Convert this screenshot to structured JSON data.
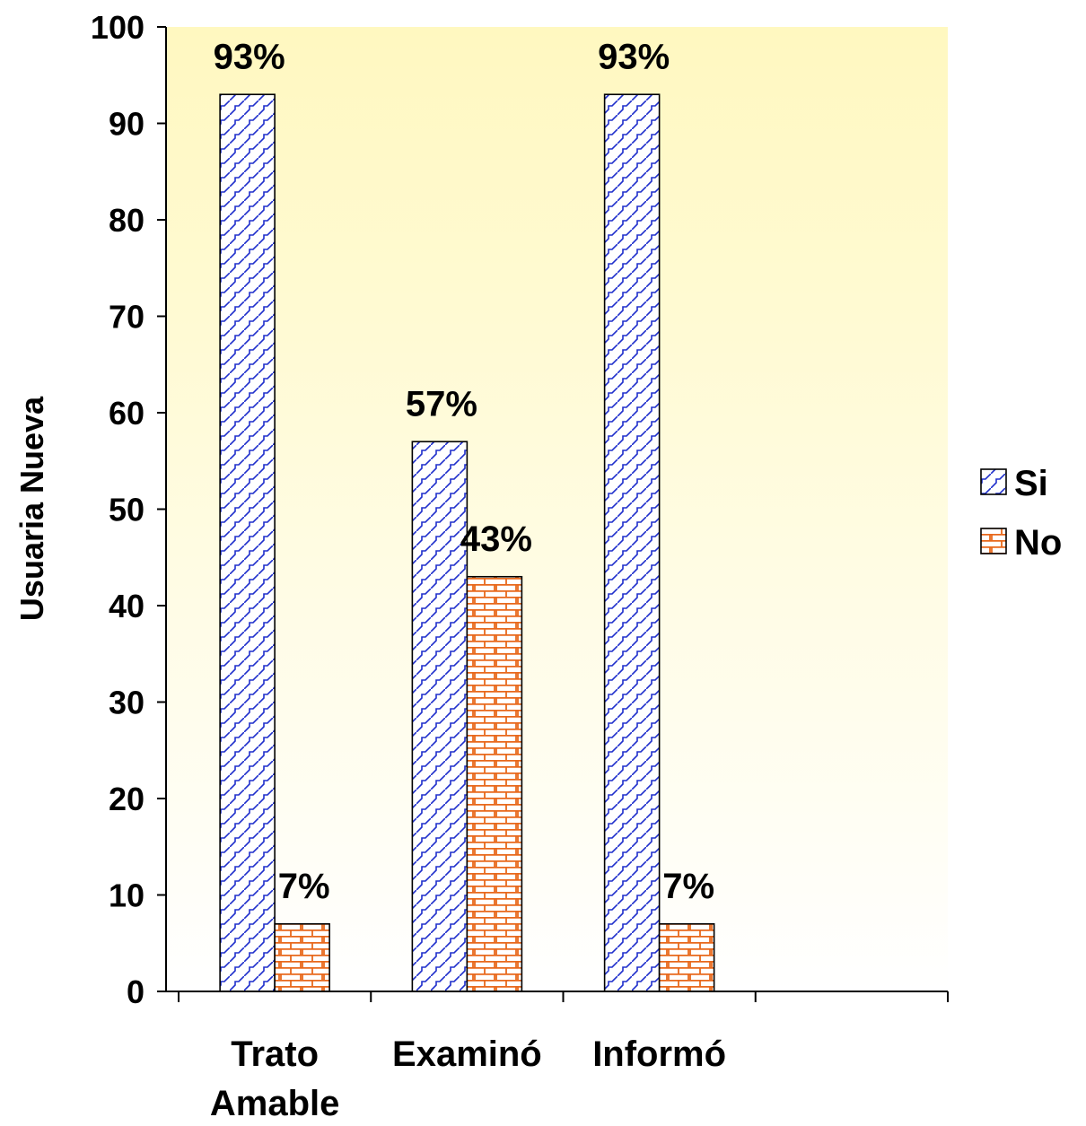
{
  "chart_data": {
    "type": "bar",
    "categories": [
      "Trato Amable",
      "Examinó",
      "Informó",
      ""
    ],
    "category_lines": [
      [
        "Trato",
        "Amable"
      ],
      [
        "Examinó"
      ],
      [
        "Informó"
      ],
      []
    ],
    "series": [
      {
        "name": "Si",
        "values": [
          93,
          57,
          93,
          null
        ],
        "labels": [
          "93%",
          "57%",
          "93%",
          ""
        ],
        "color": "#1f2fcc",
        "pattern": "diagonal-zigzag"
      },
      {
        "name": "No",
        "values": [
          7,
          43,
          7,
          null
        ],
        "labels": [
          "7%",
          "43%",
          "7%",
          ""
        ],
        "color": "#e8681c",
        "pattern": "brick"
      }
    ],
    "title": "",
    "xlabel": "",
    "ylabel": "Usuaria Nueva",
    "ylim": [
      0,
      100
    ],
    "yticks": [
      0,
      10,
      20,
      30,
      40,
      50,
      60,
      70,
      80,
      90,
      100
    ],
    "ytick_labels": [
      "0",
      "10",
      "20",
      "30",
      "40",
      "50",
      "60",
      "70",
      "80",
      "90",
      "100"
    ],
    "grid": false,
    "legend_position": "right",
    "plot_background": "#fff8c0"
  }
}
